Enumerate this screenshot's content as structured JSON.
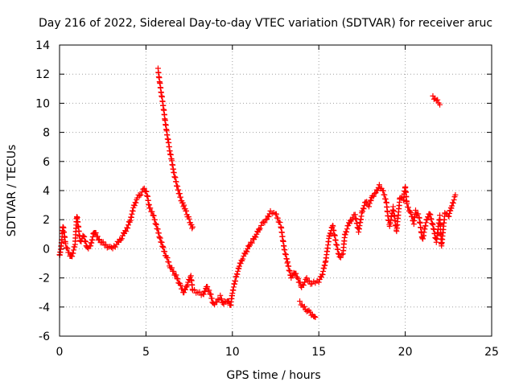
{
  "chart_data": {
    "type": "scatter",
    "title": "Day 216 of 2022, Sidereal Day-to-day VTEC variation (SDTVAR) for receiver aruc",
    "xlabel": "GPS time / hours",
    "ylabel": "SDTVAR / TECUs",
    "xlim": [
      0,
      25
    ],
    "ylim": [
      -6,
      14
    ],
    "x_ticks": [
      0,
      5,
      10,
      15,
      20,
      25
    ],
    "y_ticks": [
      -6,
      -4,
      -2,
      0,
      2,
      4,
      6,
      8,
      10,
      12,
      14
    ],
    "grid": true,
    "marker": "+",
    "color": "#ff0000",
    "series": [
      {
        "name": "main-trace",
        "points": [
          [
            0.0,
            -0.5
          ],
          [
            0.1,
            0.2
          ],
          [
            0.2,
            1.6
          ],
          [
            0.35,
            0.3
          ],
          [
            0.5,
            -0.2
          ],
          [
            0.7,
            -0.6
          ],
          [
            0.9,
            0.3
          ],
          [
            1.0,
            2.3
          ],
          [
            1.2,
            0.5
          ],
          [
            1.4,
            0.9
          ],
          [
            1.6,
            0.0
          ],
          [
            1.8,
            0.2
          ],
          [
            2.0,
            1.2
          ],
          [
            2.3,
            0.6
          ],
          [
            2.6,
            0.3
          ],
          [
            3.0,
            0.0
          ],
          [
            3.3,
            0.3
          ],
          [
            3.6,
            0.8
          ],
          [
            3.9,
            1.4
          ],
          [
            4.1,
            2.0
          ],
          [
            4.3,
            2.9
          ],
          [
            4.5,
            3.5
          ],
          [
            4.7,
            3.8
          ],
          [
            4.9,
            4.1
          ],
          [
            5.0,
            4.0
          ],
          [
            5.1,
            3.5
          ],
          [
            5.2,
            2.8
          ],
          [
            5.4,
            2.4
          ],
          [
            5.6,
            1.6
          ],
          [
            5.8,
            0.8
          ],
          [
            6.0,
            0.0
          ],
          [
            6.2,
            -0.6
          ],
          [
            6.4,
            -1.2
          ],
          [
            6.6,
            -1.6
          ],
          [
            6.8,
            -2.0
          ],
          [
            7.0,
            -2.6
          ],
          [
            7.2,
            -3.0
          ],
          [
            7.4,
            -2.4
          ],
          [
            7.6,
            -1.9
          ],
          [
            7.7,
            -2.8
          ],
          [
            8.3,
            -3.2
          ],
          [
            8.5,
            -2.6
          ],
          [
            8.7,
            -3.0
          ],
          [
            8.9,
            -3.8
          ],
          [
            9.1,
            -3.6
          ],
          [
            9.3,
            -3.3
          ],
          [
            9.5,
            -3.8
          ],
          [
            9.7,
            -3.5
          ],
          [
            9.9,
            -3.9
          ],
          [
            10.0,
            -3.0
          ],
          [
            10.2,
            -2.0
          ],
          [
            10.4,
            -1.2
          ],
          [
            10.6,
            -0.6
          ],
          [
            10.8,
            -0.2
          ],
          [
            11.0,
            0.3
          ],
          [
            11.2,
            0.6
          ],
          [
            11.4,
            1.0
          ],
          [
            11.6,
            1.5
          ],
          [
            11.8,
            1.8
          ],
          [
            12.0,
            2.1
          ],
          [
            12.2,
            2.5
          ],
          [
            12.5,
            2.4
          ],
          [
            12.8,
            1.6
          ],
          [
            12.9,
            0.8
          ],
          [
            13.0,
            0.0
          ],
          [
            13.2,
            -1.0
          ],
          [
            13.4,
            -2.0
          ],
          [
            13.6,
            -1.6
          ],
          [
            13.8,
            -2.1
          ],
          [
            14.0,
            -2.6
          ],
          [
            14.3,
            -2.1
          ],
          [
            14.6,
            -2.4
          ],
          [
            15.0,
            -2.2
          ],
          [
            15.2,
            -1.8
          ],
          [
            15.4,
            -0.8
          ],
          [
            15.6,
            0.8
          ],
          [
            15.8,
            1.6
          ],
          [
            16.0,
            0.4
          ],
          [
            16.2,
            -0.6
          ],
          [
            16.4,
            -0.3
          ],
          [
            16.5,
            0.9
          ],
          [
            16.7,
            1.6
          ],
          [
            16.9,
            2.1
          ],
          [
            17.1,
            2.3
          ],
          [
            17.3,
            1.2
          ],
          [
            17.5,
            2.5
          ],
          [
            17.7,
            3.2
          ],
          [
            17.9,
            3.0
          ],
          [
            18.1,
            3.6
          ],
          [
            18.3,
            3.9
          ],
          [
            18.5,
            4.3
          ],
          [
            18.7,
            4.0
          ],
          [
            18.9,
            3.3
          ],
          [
            19.0,
            2.2
          ],
          [
            19.1,
            1.6
          ],
          [
            19.3,
            2.8
          ],
          [
            19.5,
            1.2
          ],
          [
            19.7,
            3.6
          ],
          [
            19.9,
            3.3
          ],
          [
            20.0,
            4.3
          ],
          [
            20.1,
            3.0
          ],
          [
            20.3,
            2.5
          ],
          [
            20.5,
            1.8
          ],
          [
            20.6,
            2.6
          ],
          [
            20.8,
            2.2
          ],
          [
            21.0,
            0.6
          ],
          [
            21.2,
            1.8
          ],
          [
            21.4,
            2.5
          ],
          [
            21.6,
            1.6
          ],
          [
            21.8,
            0.5
          ],
          [
            22.0,
            2.2
          ],
          [
            22.1,
            0.2
          ],
          [
            22.3,
            2.5
          ],
          [
            22.5,
            2.2
          ],
          [
            22.7,
            3.0
          ],
          [
            22.9,
            3.6
          ]
        ]
      },
      {
        "name": "descending-arc",
        "points": [
          [
            5.7,
            12.3
          ],
          [
            5.8,
            11.4
          ],
          [
            5.9,
            10.6
          ],
          [
            6.0,
            9.8
          ],
          [
            6.1,
            8.9
          ],
          [
            6.2,
            8.0
          ],
          [
            6.3,
            7.3
          ],
          [
            6.4,
            6.6
          ],
          [
            6.5,
            6.0
          ],
          [
            6.6,
            5.3
          ],
          [
            6.7,
            4.8
          ],
          [
            6.8,
            4.3
          ],
          [
            6.9,
            3.9
          ],
          [
            7.0,
            3.5
          ],
          [
            7.1,
            3.2
          ],
          [
            7.2,
            2.9
          ],
          [
            7.3,
            2.6
          ],
          [
            7.4,
            2.3
          ],
          [
            7.5,
            2.0
          ],
          [
            7.6,
            1.7
          ],
          [
            7.7,
            1.4
          ]
        ]
      },
      {
        "name": "low-segment",
        "points": [
          [
            13.9,
            -3.7
          ],
          [
            14.1,
            -4.0
          ],
          [
            14.3,
            -4.2
          ],
          [
            14.5,
            -4.4
          ],
          [
            14.7,
            -4.6
          ],
          [
            14.8,
            -4.8
          ]
        ]
      },
      {
        "name": "high-segment",
        "points": [
          [
            21.6,
            10.4
          ],
          [
            21.8,
            10.2
          ],
          [
            22.0,
            10.0
          ]
        ]
      }
    ]
  }
}
